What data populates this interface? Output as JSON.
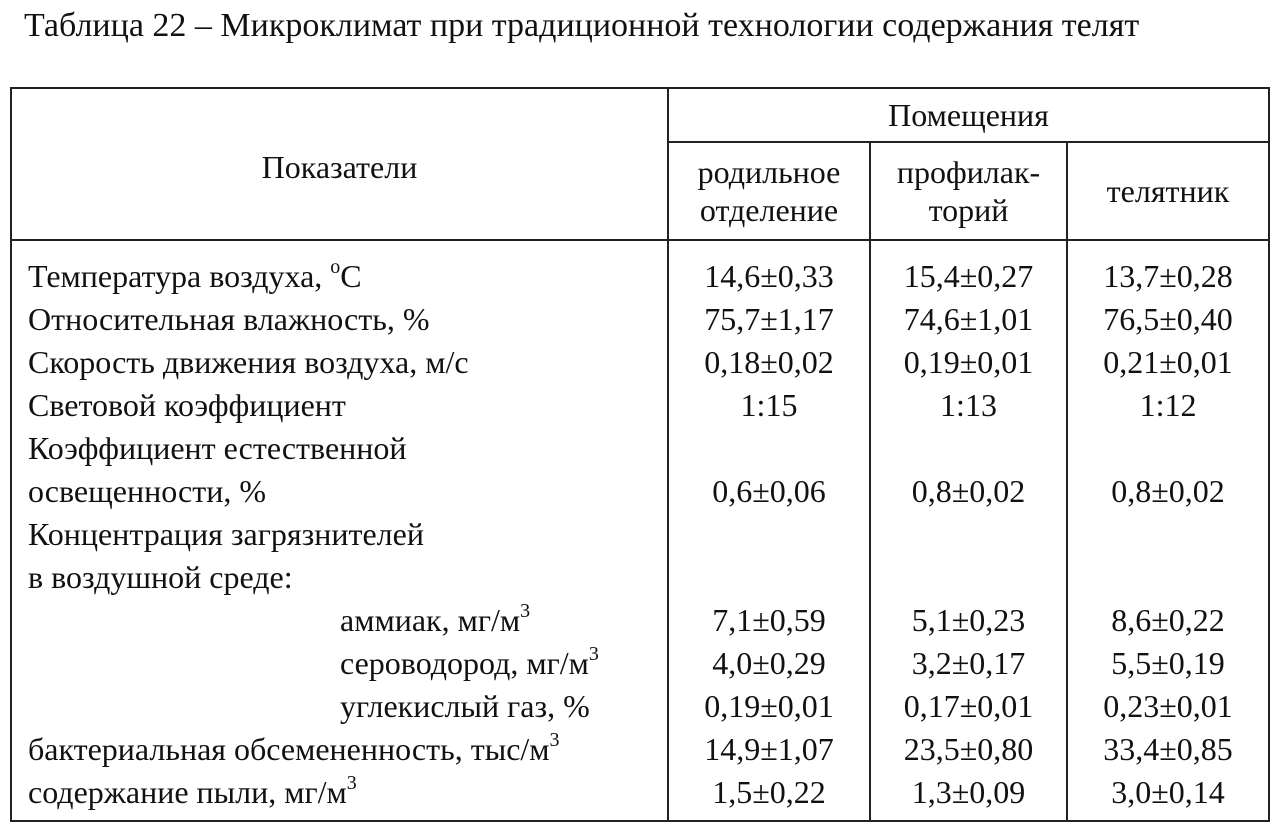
{
  "caption": "Таблица 22 – Микроклимат при традиционной технологии содержания телят",
  "header": {
    "indicator": "Показатели",
    "group": "Помещения",
    "columns": [
      {
        "line1": "родильное",
        "line2": "отделение"
      },
      {
        "line1": "профилак-",
        "line2": "торий"
      },
      {
        "line1": "телятник",
        "line2": ""
      }
    ]
  },
  "rows": [
    {
      "label": "Температура воздуха, ",
      "sup": "о",
      "label_tail": "С",
      "values": [
        "14,6±0,33",
        "15,4±0,27",
        "13,7±0,28"
      ]
    },
    {
      "label": "Относительная влажность, %",
      "sup": "",
      "label_tail": "",
      "values": [
        "75,7±1,17",
        "74,6±1,01",
        "76,5±0,40"
      ]
    },
    {
      "label": "Скорость движения воздуха, м/с",
      "sup": "",
      "label_tail": "",
      "values": [
        "0,18±0,02",
        "0,19±0,01",
        "0,21±0,01"
      ]
    },
    {
      "label": "Световой коэффициент",
      "sup": "",
      "label_tail": "",
      "values": [
        "1:15",
        "1:13",
        "1:12"
      ]
    },
    {
      "label": "Коэффициент естественной",
      "sup": "",
      "label_tail": "",
      "values": [
        "",
        "",
        ""
      ]
    },
    {
      "label": "освещенности, %",
      "sup": "",
      "label_tail": "",
      "values": [
        "0,6±0,06",
        "0,8±0,02",
        "0,8±0,02"
      ]
    },
    {
      "label": "Концентрация загрязнителей",
      "sup": "",
      "label_tail": "",
      "values": [
        "",
        "",
        ""
      ]
    },
    {
      "label": "в воздушной среде:",
      "sup": "",
      "label_tail": "",
      "values": [
        "",
        "",
        ""
      ]
    },
    {
      "label": "аммиак, мг/м",
      "sup": "3",
      "label_tail": "",
      "indent": true,
      "values": [
        "7,1±0,59",
        "5,1±0,23",
        "8,6±0,22"
      ]
    },
    {
      "label": "сероводород, мг/м",
      "sup": "3",
      "label_tail": "",
      "indent": true,
      "values": [
        "4,0±0,29",
        "3,2±0,17",
        "5,5±0,19"
      ]
    },
    {
      "label": "углекислый газ, %",
      "sup": "",
      "label_tail": "",
      "indent": true,
      "values": [
        "0,19±0,01",
        "0,17±0,01",
        "0,23±0,01"
      ]
    },
    {
      "label": "бактериальная обсемененность, тыс/м",
      "sup": "3",
      "label_tail": "",
      "values": [
        "14,9±1,07",
        "23,5±0,80",
        "33,4±0,85"
      ]
    },
    {
      "label": "содержание пыли, мг/м",
      "sup": "3",
      "label_tail": "",
      "values": [
        "1,5±0,22",
        "1,3±0,09",
        "3,0±0,14"
      ]
    }
  ]
}
